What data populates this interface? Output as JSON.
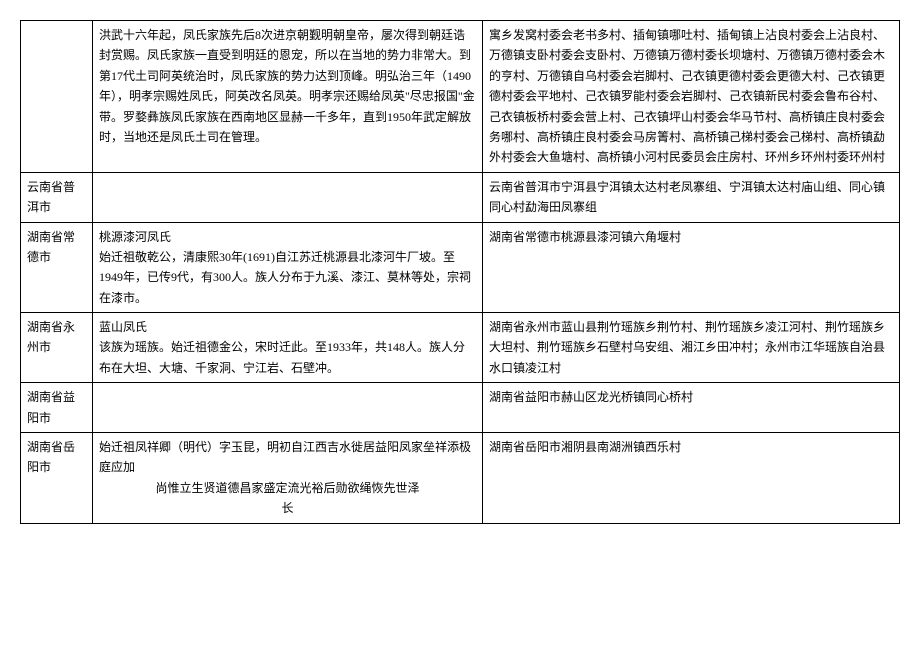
{
  "rows": [
    {
      "region": "",
      "desc": "洪武十六年起，凤氏家族先后8次进京朝觐明朝皇帝，屡次得到朝廷诰封赏赐。凤氏家族一直受到明廷的恩宠，所以在当地的势力非常大。到第17代土司阿英统治时，凤氏家族的势力达到顶峰。明弘治三年（1490年），明孝宗赐姓凤氏，阿英改名凤英。明孝宗还赐给凤英\"尽忠报国\"金带。罗婺彝族凤氏家族在西南地区显赫一千多年，直到1950年武定解放时，当地还是凤氏土司在管理。",
      "villages": "寓乡发窝村委会老书多村、插甸镇哪吐村、插甸镇上沾良村委会上沾良村、万德镇支卧村委会支卧村、万德镇万德村委长坝塘村、万德镇万德村委会木的亨村、万德镇自乌村委会岩脚村、己衣镇更德村委会更德大村、己衣镇更德村委会平地村、己衣镇罗能村委会岩脚村、己衣镇新民村委会鲁布谷村、己衣镇板桥村委会营上村、己衣镇坪山村委会华马节村、高桥镇庄良村委会务哪村、高桥镇庄良村委会马房箐村、高桥镇己梯村委会己梯村、高桥镇勐外村委会大鱼塘村、高桥镇小河村民委员会庄房村、环州乡环州村委环州村"
    },
    {
      "region": "云南省普洱市",
      "desc": "",
      "villages": "云南省普洱市宁洱县宁洱镇太达村老凤寨组、宁洱镇太达村庙山组、同心镇同心村勐海田凤寨组"
    },
    {
      "region": "湖南省常德市",
      "desc": "桃源漆河凤氏\n始迁祖敬乾公，清康熙30年(1691)自江苏迁桃源县北漆河牛厂坡。至1949年，已传9代，有300人。族人分布于九溪、漆江、莫林等处，宗祠在漆市。",
      "villages": "湖南省常德市桃源县漆河镇六角堰村"
    },
    {
      "region": "湖南省永州市",
      "desc": "蓝山凤氏\n该族为瑶族。始迁祖德金公，宋时迁此。至1933年，共148人。族人分布在大坦、大塘、千家洞、宁江岩、石壁冲。",
      "villages": "湖南省永州市蓝山县荆竹瑶族乡荆竹村、荆竹瑶族乡凌江河村、荆竹瑶族乡大坦村、荆竹瑶族乡石壁村乌安组、湘江乡田冲村；永州市江华瑶族自治县水口镇凌江村"
    },
    {
      "region": "湖南省益阳市",
      "desc": "",
      "villages": "湖南省益阳市赫山区龙光桥镇同心桥村"
    },
    {
      "region": "湖南省岳阳市",
      "desc": "始迁祖凤祥卿（明代）字玉昆，明初自江西吉水徙居益阳凤家垒祥添极庭应加尚惟立生贤道德昌家盛定流光裕后勋欲绳恢先世泽长",
      "villages": "湖南省岳阳市湘阴县南湖洲镇西乐村"
    }
  ]
}
